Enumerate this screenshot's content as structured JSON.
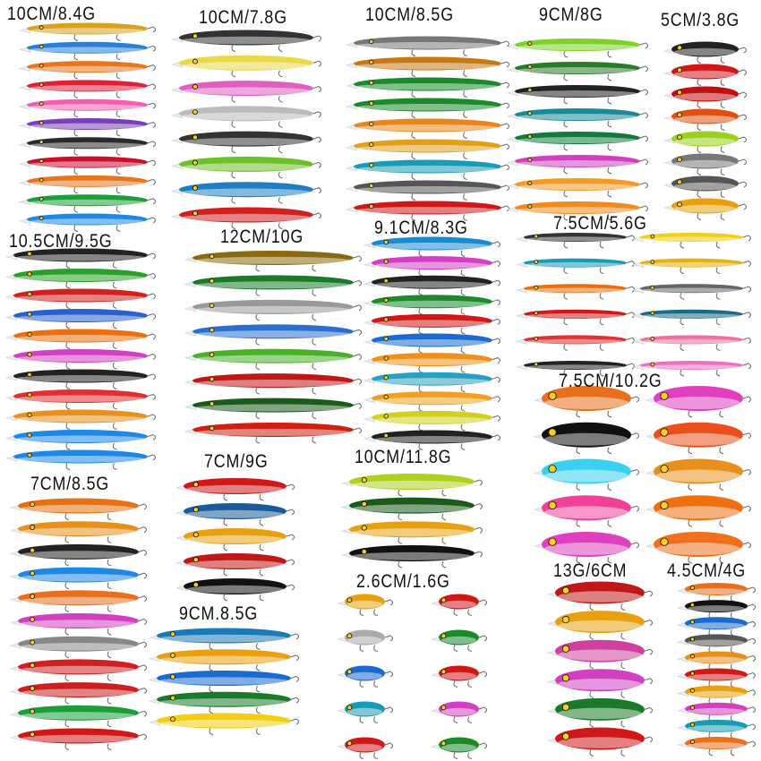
{
  "groups": [
    {
      "label": "10CM/8.4G",
      "count": 11,
      "colors": [
        "#d9a21b",
        "#2a7fd6",
        "#e8761c",
        "#e0203a",
        "#f05fb0",
        "#7a3fb8",
        "#2a2a2a",
        "#c8102e",
        "#e8761c",
        "#1b9e3a",
        "#1e88e5"
      ]
    },
    {
      "label": "10CM/7.8G",
      "count": 8,
      "colors": [
        "#333333",
        "#e9d84a",
        "#e05fc0",
        "#bbbbbb",
        "#333333",
        "#6fbf2a",
        "#1f7fc0",
        "#d02020"
      ]
    },
    {
      "label": "10CM/8.5G",
      "count": 9,
      "colors": [
        "#777777",
        "#c77a14",
        "#1b8a2a",
        "#1b8a2a",
        "#e6871c",
        "#e0a01c",
        "#1a9bb5",
        "#555555",
        "#d01818"
      ]
    },
    {
      "label": "9CM/8G",
      "count": 8,
      "colors": [
        "#7cd12a",
        "#2a7a2a",
        "#222222",
        "#1a8a9a",
        "#127a3a",
        "#d040c0",
        "#f39a2a",
        "#f08c1c"
      ]
    },
    {
      "label": "5CM/3.8G",
      "count": 8,
      "colors": [
        "#222222",
        "#d01818",
        "#c01010",
        "#e05010",
        "#9ad11a",
        "#777777",
        "#555555",
        "#e8a010"
      ]
    },
    {
      "label": "10.5CM/9.5G",
      "count": 11,
      "colors": [
        "#222222",
        "#2aa02a",
        "#d02020",
        "#2a5fd0",
        "#e87010",
        "#d040c0",
        "#222222",
        "#e03030",
        "#e8901c",
        "#1e88e5",
        "#1e88e5"
      ]
    },
    {
      "label": "12CM/10G",
      "count": 8,
      "colors": [
        "#8a6a10",
        "#1b7a2a",
        "#999999",
        "#2a6fd0",
        "#4ab02a",
        "#c01818",
        "#1b5a1a",
        "#d02010"
      ]
    },
    {
      "label": "9.1CM/8.3G",
      "count": 11,
      "colors": [
        "#1a8ad0",
        "#d040c0",
        "#222222",
        "#1b8a2a",
        "#d01818",
        "#1a6ad0",
        "#f0901c",
        "#2aa0c0",
        "#f0a01c",
        "#d0d020",
        "#222222"
      ]
    },
    {
      "label": "7.5CM/5.6G",
      "count": 12,
      "colors": [
        "#333333",
        "#1a9ab5",
        "#e87010",
        "#d01818",
        "#e03030",
        "#222222",
        "#f0d010",
        "#e8b010",
        "#666666",
        "#1a6a8a",
        "#f070a0",
        "#f070c0"
      ]
    },
    {
      "label": "7.5CM/10.2G",
      "count": 10,
      "colors": [
        "#e8701c",
        "#111111",
        "#3ad0f0",
        "#f0409a",
        "#e040c0",
        "#e040c0",
        "#e8501c",
        "#e8901c",
        "#f07010",
        "#f0701c"
      ]
    },
    {
      "label": "7CM/8.5G",
      "count": 11,
      "colors": [
        "#e87010",
        "#e8901c",
        "#222222",
        "#1e88e5",
        "#e8701c",
        "#d040c0",
        "#888888",
        "#d02020",
        "#cc2020",
        "#1b9e3a",
        "#d01818"
      ]
    },
    {
      "label": "7CM/9G",
      "count": 5,
      "colors": [
        "#d01818",
        "#1a5a9a",
        "#e8a010",
        "#c01818",
        "#111111"
      ]
    },
    {
      "label": "10CM/11.8G",
      "count": 4,
      "colors": [
        "#b0d020",
        "#1b5a1a",
        "#e8a010",
        "#111111"
      ]
    },
    {
      "label": "9CM.8.5G",
      "count": 5,
      "colors": [
        "#1a7ab5",
        "#e8a010",
        "#1a6ad0",
        "#1b7a2a",
        "#f0d010"
      ]
    },
    {
      "label": "2.6CM/1.6G",
      "count": 10,
      "colors": [
        "#e8a010",
        "#aaaaaa",
        "#1a6ad0",
        "#1a9ab5",
        "#d01818",
        "#d01818",
        "#1b8a2a",
        "#d01818",
        "#d040c0",
        "#1b8a2a"
      ]
    },
    {
      "label": "13G/6CM",
      "count": 6,
      "colors": [
        "#c01818",
        "#e8a010",
        "#d040a0",
        "#d040c0",
        "#1b7a2a",
        "#d01818"
      ]
    },
    {
      "label": "4.5CM/4G",
      "count": 10,
      "colors": [
        "#e8701c",
        "#111111",
        "#1a6ad0",
        "#555555",
        "#e8901c",
        "#d01818",
        "#e8a010",
        "#d040c0",
        "#1a9ab5",
        "#e8701c"
      ]
    }
  ]
}
